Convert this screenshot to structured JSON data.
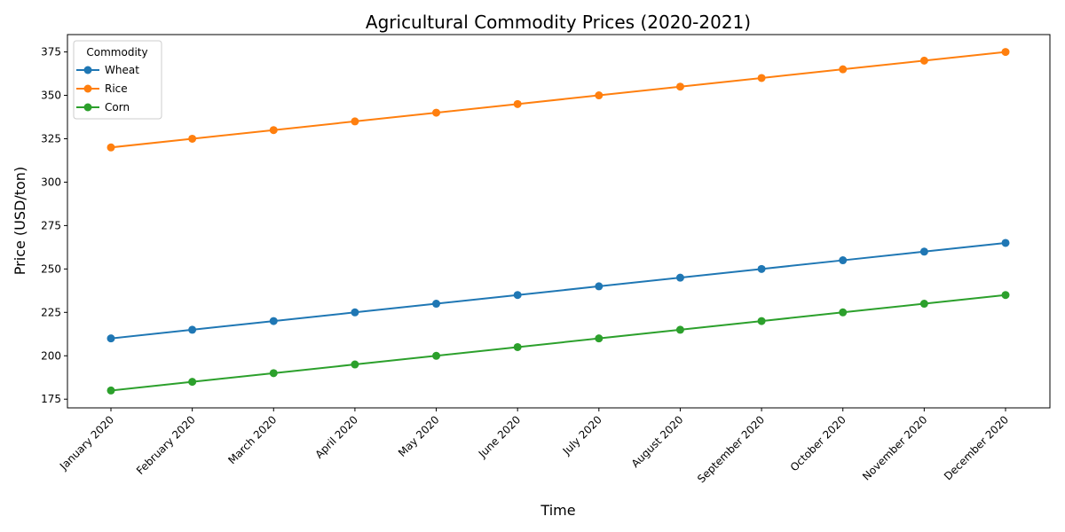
{
  "chart_data": {
    "type": "line",
    "title": "Agricultural Commodity Prices (2020-2021)",
    "xlabel": "Time",
    "ylabel": "Price (USD/ton)",
    "categories": [
      "January 2020",
      "February 2020",
      "March 2020",
      "April 2020",
      "May 2020",
      "June 2020",
      "July 2020",
      "August 2020",
      "September 2020",
      "October 2020",
      "November 2020",
      "December 2020"
    ],
    "ylim": [
      170,
      385
    ],
    "yticks": [
      175,
      200,
      225,
      250,
      275,
      300,
      325,
      350,
      375
    ],
    "grid": false,
    "legend": {
      "title": "Commodity",
      "placement": "top-left"
    },
    "series": [
      {
        "name": "Wheat",
        "color": "#1f77b4",
        "values": [
          210,
          215,
          220,
          225,
          230,
          235,
          240,
          245,
          250,
          255,
          260,
          265
        ]
      },
      {
        "name": "Rice",
        "color": "#ff7f0e",
        "values": [
          320,
          325,
          330,
          335,
          340,
          345,
          350,
          355,
          360,
          365,
          370,
          375
        ]
      },
      {
        "name": "Corn",
        "color": "#2ca02c",
        "values": [
          180,
          185,
          190,
          195,
          200,
          205,
          210,
          215,
          220,
          225,
          230,
          235
        ]
      }
    ]
  }
}
